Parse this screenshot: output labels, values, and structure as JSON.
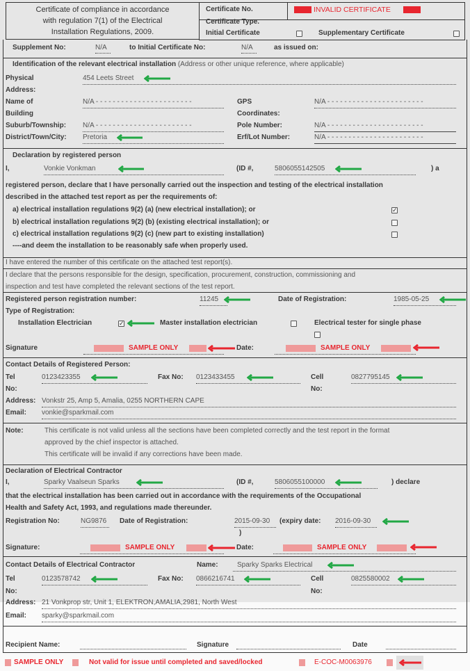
{
  "header": {
    "title_lines": [
      "Certificate of compliance in accordance",
      "with regulation 7(1) of the Electrical",
      "Installation Regulations, 2009."
    ],
    "cert_no_label": "Certificate No.",
    "cert_no_value": "INVALID CERTIFICATE",
    "cert_type_label": "Certificate Type.",
    "initial_label": "Initial Certificate",
    "initial_checked": false,
    "supplementary_label": "Supplementary Certificate",
    "supplementary_checked": false
  },
  "supplement": {
    "label": "Supplement No:",
    "value": "N/A",
    "initial_label": "to Initial Certificate No:",
    "initial_value": "N/A",
    "issued_label": "as issued on:"
  },
  "identification": {
    "heading_bold": "Identification of the relevant electrical installation",
    "heading_note": "(Address or other unique reference, where applicable)",
    "physical_label": [
      "Physical",
      "Address:"
    ],
    "physical_value": "454 Leets Street",
    "building_label": [
      "Name of",
      "Building"
    ],
    "building_value": "N/A - - - - - - - - - - - - - - - - - - - - - - -",
    "gps_label": [
      "GPS",
      "Coordinates:"
    ],
    "gps_value": "N/A - - - - - - - - - - - - - - - - - - - - - - -",
    "suburb_label": "Suburb/Township:",
    "suburb_value": "N/A - - - - - - - - - - - - - - - - - - - - - - -",
    "pole_label": "Pole Number:",
    "pole_value": "N/A - - - - - - - - - - - - - - - - - - - - - - -",
    "district_label": "District/Town/City:",
    "district_value": "Pretoria",
    "erf_label": "Erf/Lot Number:",
    "erf_value": "N/A - - - - - - - - - - - - - - - - - - - - - - -"
  },
  "declaration": {
    "heading": "Declaration by registered person",
    "i_label": "I,",
    "name": "Vonkie Vonkman",
    "id_label": "(ID #,",
    "id_value": "5806055142505",
    "id_suffix": ") a",
    "para": [
      "registered person, declare that I have personally carried out the inspection and testing of the electrical installation",
      "described in the attached test report as per the requirements of:"
    ],
    "options": [
      {
        "label": "a) electrical installation regulations 9(2) (a) (new electrical installation); or",
        "checked": true
      },
      {
        "label": "b) electrical installation regulations 9(2) (b) (existing electrical installation); or",
        "checked": false
      },
      {
        "label": "c) electrical installation regulations 9(2) (c) (new part to existing installation)",
        "checked": false
      }
    ],
    "deem": "----and deem the installation to be reasonably safe when properly used."
  },
  "statement1": "I have entered the number of this certificate on the attached test report(s).",
  "statement2": [
    "I declare that the persons responsible for the design, specification, procurement, construction, commissioning and",
    "inspection and test have completed the relevant sections of the test report."
  ],
  "registration": {
    "number_label": "Registered person registration number:",
    "number_value": "11245",
    "date_label": "Date of Registration:",
    "date_value": "1985-05-25",
    "type_label": "Type of Registration:",
    "types": [
      {
        "label": "Installation Electrician",
        "checked": true
      },
      {
        "label": "Master installation electrician",
        "checked": false
      },
      {
        "label": "Electrical tester for single phase",
        "checked": false
      }
    ],
    "signature_label": "Signature",
    "signature_value": "SAMPLE ONLY",
    "date2_label": "Date:",
    "date2_value": "SAMPLE ONLY"
  },
  "contact_person": {
    "heading": "Contact Details of Registered Person:",
    "tel_label": [
      "Tel",
      "No:"
    ],
    "tel": "0123423355",
    "fax_label": "Fax No:",
    "fax": "0123433455",
    "cell_label": [
      "Cell",
      "No:"
    ],
    "cell": "0827795145",
    "address_label": "Address:",
    "address": "Vonkstr 25, Amp 5, Amalia, 0255 NORTHERN CAPE",
    "email_label": "Email:",
    "email": "vonkie@sparkmail.com"
  },
  "note": {
    "label": "Note:",
    "lines": [
      "This certificate is not valid unless all the sections have been completed correctly and the test report in the format",
      "approved by the chief inspector is attached.",
      "This certificate will be invalid if any corrections have been made."
    ]
  },
  "contractor": {
    "heading": "Declaration of Electrical Contractor",
    "i_label": "I,",
    "name": "Sparky Vaalseun Sparks",
    "id_label": "(ID #,",
    "id_value": "5806055100000",
    "id_suffix": ") declare",
    "para": [
      "that the electrical installation has been carried out in accordance with the requirements of the Occupational",
      "Health and Safety Act, 1993, and regulations made thereunder."
    ],
    "reg_label": "Registration No:",
    "reg_value": "NG9876",
    "date_label": "Date of Registration:",
    "date_value": "2015-09-30",
    "expiry_label": "(expiry date:",
    "expiry_value": "2016-09-30",
    "close": ")",
    "signature_label": "Signature:",
    "signature_value": "SAMPLE ONLY",
    "date2_label": "Date:",
    "date2_value": "SAMPLE ONLY"
  },
  "contact_contractor": {
    "heading": "Contact Details of Electrical Contractor",
    "name_label": "Name:",
    "name": "Sparky Sparks Electrical",
    "tel_label": [
      "Tel",
      "No:"
    ],
    "tel": "0123578742",
    "fax_label": "Fax No:",
    "fax": "0866216741",
    "cell_label": [
      "Cell",
      "No:"
    ],
    "cell": "0825580002",
    "address_label": "Address:",
    "address": "21 Vonkprop str, Unit 1, ELEKTRON,AMALIA,2981, North West",
    "email_label": "Email:",
    "email": "sparky@sparkmail.com"
  },
  "recipient": {
    "name_label": "Recipient Name:",
    "signature_label": "Signature",
    "date_label": "Date"
  },
  "footer": {
    "sample": "SAMPLE ONLY",
    "not_valid": "Not valid for issue until completed and saved/locked",
    "coc_no": "E-COC-M0063976"
  },
  "colors": {
    "green_arrow": "#22a845",
    "red_arrow": "#e8262f",
    "red_bar": "#ef9a9a",
    "background": "#e6e6e6"
  }
}
